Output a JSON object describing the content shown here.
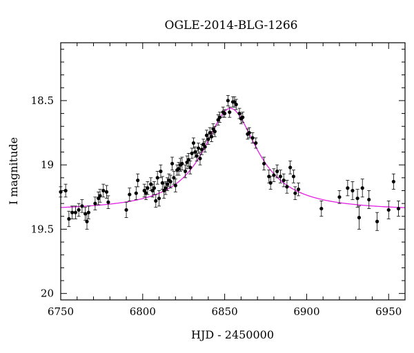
{
  "chart_data": {
    "type": "scatter",
    "title": "OGLE-2014-BLG-1266",
    "xlabel": "HJD - 2450000",
    "ylabel": "I magnitude",
    "xlim": [
      6750,
      6960
    ],
    "ylim": [
      20.05,
      18.05
    ],
    "y_inverted": true,
    "x_ticks": [
      6750,
      6800,
      6850,
      6900,
      6950
    ],
    "y_ticks": [
      18.5,
      19,
      19.5,
      20
    ],
    "x_tick_labels": [
      "6750",
      "6800",
      "6850",
      "6900",
      "6950"
    ],
    "y_tick_labels": [
      "18.5",
      "19",
      "19.5",
      "20"
    ],
    "grid": false,
    "colors": {
      "points": "#000000",
      "model": "#e21ee2"
    },
    "series": [
      {
        "kind": "points_with_errorbars",
        "x": [
          6750,
          6753,
          6755,
          6757,
          6759,
          6761,
          6763,
          6765,
          6766,
          6767,
          6771,
          6773,
          6774,
          6776,
          6778,
          6779,
          6790,
          6792,
          6796,
          6797,
          6801,
          6802,
          6803,
          6805,
          6806,
          6807,
          6808,
          6809,
          6810,
          6811,
          6812,
          6813,
          6814,
          6815,
          6816,
          6817,
          6818,
          6819,
          6820,
          6821,
          6822,
          6823,
          6824,
          6826,
          6827,
          6828,
          6829,
          6830,
          6831,
          6832,
          6833,
          6834,
          6835,
          6836,
          6837,
          6838,
          6839,
          6840,
          6841,
          6842,
          6843,
          6844,
          6846,
          6847,
          6849,
          6850,
          6852,
          6853,
          6855,
          6856,
          6857,
          6859,
          6860,
          6861,
          6864,
          6865,
          6867,
          6869,
          6874,
          6877,
          6878,
          6880,
          6882,
          6884,
          6886,
          6888,
          6890,
          6892,
          6893,
          6895,
          6909,
          6920,
          6925,
          6928,
          6931,
          6932,
          6934,
          6938,
          6943,
          6950,
          6953,
          6956
        ],
        "y": [
          19.21,
          19.2,
          19.42,
          19.37,
          19.37,
          19.35,
          19.32,
          19.38,
          19.44,
          19.37,
          19.3,
          19.26,
          19.24,
          19.2,
          19.21,
          19.29,
          19.35,
          19.23,
          19.22,
          19.12,
          19.2,
          19.22,
          19.18,
          19.15,
          19.2,
          19.18,
          19.28,
          19.1,
          19.26,
          19.05,
          19.14,
          19.2,
          19.18,
          19.15,
          19.12,
          19.13,
          18.99,
          19.1,
          19.16,
          19.04,
          19.03,
          19.0,
          18.99,
          19.05,
          18.98,
          18.96,
          19.02,
          18.91,
          18.83,
          18.9,
          18.93,
          18.87,
          18.95,
          18.88,
          18.84,
          18.86,
          18.77,
          18.8,
          18.75,
          18.78,
          18.72,
          18.74,
          18.65,
          18.63,
          18.59,
          18.6,
          18.5,
          18.59,
          18.51,
          18.51,
          18.53,
          18.6,
          18.64,
          18.63,
          18.76,
          18.75,
          18.79,
          18.83,
          18.99,
          19.09,
          19.14,
          19.08,
          19.05,
          19.09,
          19.12,
          19.17,
          19.02,
          19.09,
          19.22,
          19.19,
          19.34,
          19.25,
          19.18,
          19.2,
          19.26,
          19.41,
          19.18,
          19.27,
          19.44,
          19.35,
          19.13,
          19.34
        ],
        "err": [
          0.04,
          0.05,
          0.06,
          0.05,
          0.05,
          0.05,
          0.05,
          0.05,
          0.06,
          0.05,
          0.05,
          0.05,
          0.05,
          0.05,
          0.05,
          0.05,
          0.06,
          0.05,
          0.05,
          0.05,
          0.05,
          0.05,
          0.05,
          0.05,
          0.05,
          0.05,
          0.05,
          0.05,
          0.06,
          0.05,
          0.05,
          0.06,
          0.05,
          0.05,
          0.05,
          0.05,
          0.05,
          0.05,
          0.05,
          0.04,
          0.05,
          0.05,
          0.05,
          0.05,
          0.05,
          0.05,
          0.05,
          0.04,
          0.04,
          0.04,
          0.04,
          0.04,
          0.05,
          0.04,
          0.04,
          0.04,
          0.04,
          0.04,
          0.04,
          0.04,
          0.04,
          0.04,
          0.04,
          0.04,
          0.04,
          0.03,
          0.04,
          0.04,
          0.04,
          0.04,
          0.04,
          0.04,
          0.04,
          0.04,
          0.04,
          0.04,
          0.04,
          0.04,
          0.05,
          0.05,
          0.05,
          0.05,
          0.05,
          0.05,
          0.05,
          0.05,
          0.05,
          0.05,
          0.05,
          0.05,
          0.06,
          0.05,
          0.06,
          0.07,
          0.07,
          0.09,
          0.07,
          0.07,
          0.07,
          0.07,
          0.06,
          0.06
        ]
      },
      {
        "kind": "model_curve",
        "model": {
          "baseline": 19.36,
          "amplitude": 0.8,
          "peak_x": 6853.5,
          "width": 20
        }
      }
    ]
  }
}
